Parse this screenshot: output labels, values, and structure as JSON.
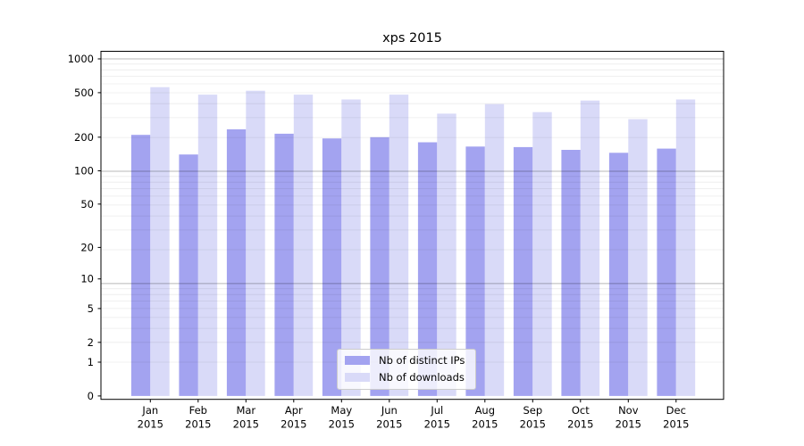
{
  "chart_data": {
    "type": "bar",
    "title": "xps 2015",
    "categories": [
      "Jan",
      "Feb",
      "Mar",
      "Apr",
      "May",
      "Jun",
      "Jul",
      "Aug",
      "Sep",
      "Oct",
      "Nov",
      "Dec"
    ],
    "x_year": "2015",
    "yticks": [
      0,
      1,
      2,
      5,
      10,
      20,
      50,
      100,
      200,
      500,
      1000
    ],
    "scale": "log1p",
    "ylim": [
      0,
      1170
    ],
    "grid": true,
    "grid_on_top": true,
    "legend_position": "lower-center",
    "series": [
      {
        "name": "Nb of distinct IPs",
        "color": "#a3a3f0",
        "values": [
          210,
          140,
          235,
          215,
          195,
          200,
          180,
          165,
          163,
          154,
          145,
          158
        ]
      },
      {
        "name": "Nb of downloads",
        "color": "#d9daf8",
        "values": [
          560,
          480,
          520,
          480,
          435,
          480,
          325,
          395,
          335,
          425,
          290,
          435
        ]
      }
    ]
  }
}
